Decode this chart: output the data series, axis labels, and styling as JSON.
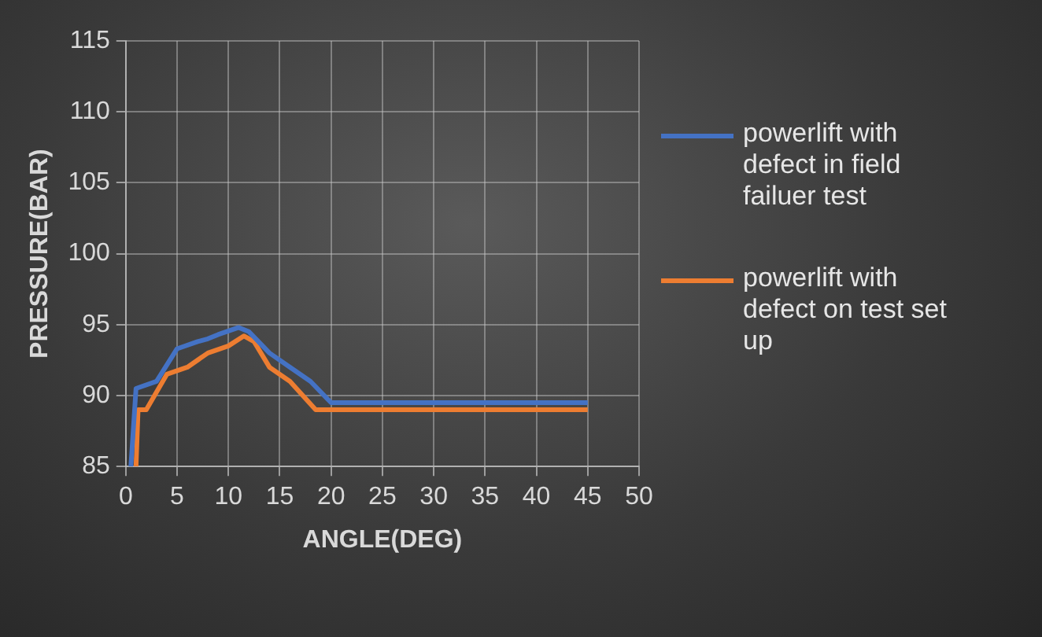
{
  "chart_data": {
    "type": "line",
    "xlabel": "ANGLE(DEG)",
    "ylabel": "PRESSURE(BAR)",
    "xlim": [
      0,
      50
    ],
    "xticks": [
      0,
      5,
      10,
      15,
      20,
      25,
      30,
      35,
      40,
      45,
      50
    ],
    "ylim": [
      85,
      115
    ],
    "yticks": [
      85,
      90,
      95,
      100,
      105,
      110,
      115
    ],
    "grid": true,
    "legend": "right",
    "marker": "none",
    "line_style": "solid",
    "series": [
      {
        "name": "powerlift with defect in field failuer test",
        "color": "#4472c4",
        "x": [
          0.5,
          1,
          3,
          5,
          7,
          8,
          9,
          11,
          12,
          14,
          16,
          18,
          20,
          25,
          30,
          35,
          40,
          45
        ],
        "values": [
          85,
          90.5,
          91,
          93.3,
          93.8,
          94,
          94.3,
          94.8,
          94.5,
          93,
          92,
          91,
          89.5,
          89.5,
          89.5,
          89.5,
          89.5,
          89.5
        ]
      },
      {
        "name": "powerlift with defect on test set up",
        "color": "#ed7d31",
        "x": [
          1,
          1.2,
          2,
          4,
          6,
          8,
          10,
          11.5,
          12.5,
          14,
          16,
          18.5,
          20,
          25,
          30,
          35,
          40,
          45
        ],
        "values": [
          85,
          89,
          89,
          91.5,
          92,
          93,
          93.5,
          94.2,
          93.8,
          92,
          91,
          89,
          89,
          89,
          89,
          89,
          89,
          89
        ]
      }
    ]
  }
}
